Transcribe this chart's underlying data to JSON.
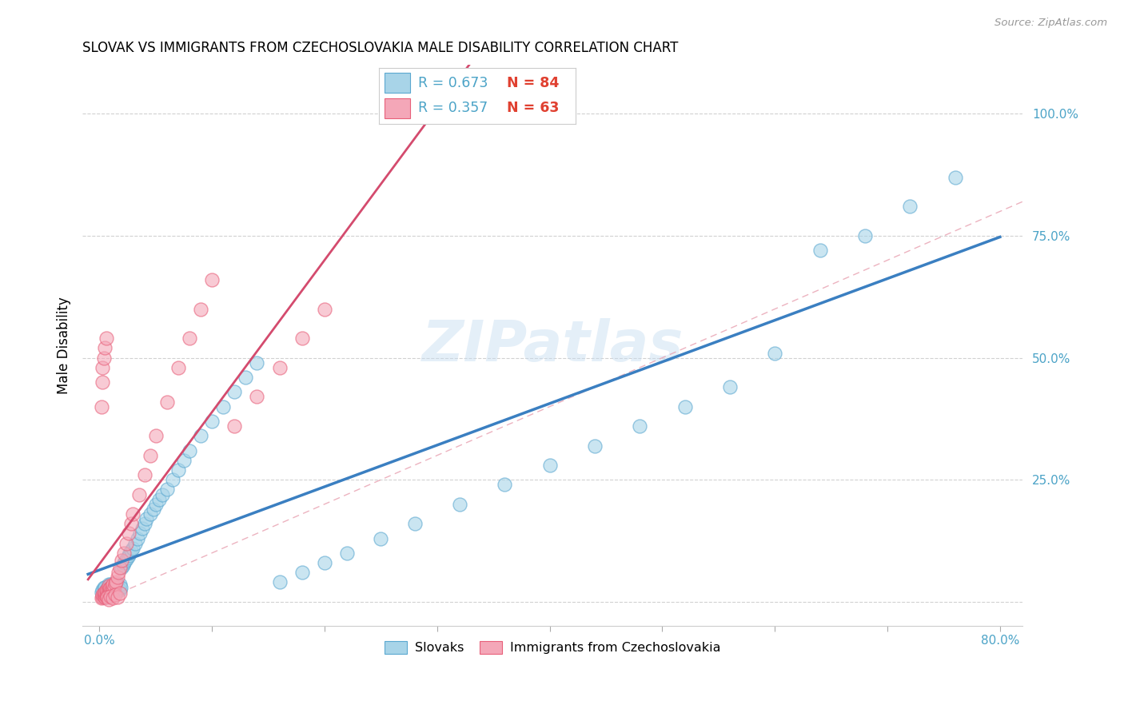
{
  "title": "SLOVAK VS IMMIGRANTS FROM CZECHOSLOVAKIA MALE DISABILITY CORRELATION CHART",
  "source": "Source: ZipAtlas.com",
  "ylabel": "Male Disability",
  "ytick_values": [
    0.0,
    0.25,
    0.5,
    0.75,
    1.0
  ],
  "ytick_labels": [
    "",
    "25.0%",
    "50.0%",
    "75.0%",
    "100.0%"
  ],
  "color_slovak": "#A8D4E8",
  "color_slovak_edge": "#5BA8D0",
  "color_immigrant": "#F4A7B8",
  "color_immigrant_edge": "#E8607A",
  "color_line_slovak": "#3A7FC1",
  "color_line_immigrant": "#D44B6E",
  "color_dashed": "#E8A0B0",
  "color_yaxis": "#4BA3C7",
  "watermark": "ZIPatlas",
  "legend_entries": [
    {
      "r": "R = 0.673",
      "n": "N = 84",
      "color_box": "#A8D4E8",
      "color_edge": "#5BA8D0"
    },
    {
      "r": "R = 0.357",
      "n": "N = 63",
      "color_box": "#F4A7B8",
      "color_edge": "#E8607A"
    }
  ],
  "slovaks_x": [
    0.002,
    0.003,
    0.004,
    0.004,
    0.005,
    0.005,
    0.005,
    0.006,
    0.006,
    0.007,
    0.007,
    0.008,
    0.008,
    0.008,
    0.009,
    0.009,
    0.01,
    0.01,
    0.01,
    0.011,
    0.011,
    0.012,
    0.012,
    0.013,
    0.013,
    0.014,
    0.014,
    0.015,
    0.015,
    0.016,
    0.016,
    0.017,
    0.018,
    0.018,
    0.019,
    0.02,
    0.021,
    0.022,
    0.023,
    0.025,
    0.026,
    0.027,
    0.028,
    0.03,
    0.032,
    0.034,
    0.036,
    0.038,
    0.04,
    0.042,
    0.045,
    0.048,
    0.05,
    0.053,
    0.056,
    0.06,
    0.065,
    0.07,
    0.075,
    0.08,
    0.09,
    0.1,
    0.11,
    0.12,
    0.13,
    0.14,
    0.16,
    0.18,
    0.2,
    0.22,
    0.25,
    0.28,
    0.32,
    0.36,
    0.4,
    0.44,
    0.48,
    0.52,
    0.56,
    0.6,
    0.64,
    0.68,
    0.72,
    0.76
  ],
  "slovaks_y": [
    0.02,
    0.025,
    0.015,
    0.03,
    0.01,
    0.02,
    0.03,
    0.015,
    0.025,
    0.012,
    0.022,
    0.018,
    0.028,
    0.035,
    0.02,
    0.03,
    0.015,
    0.025,
    0.035,
    0.022,
    0.032,
    0.02,
    0.03,
    0.025,
    0.035,
    0.022,
    0.032,
    0.028,
    0.038,
    0.025,
    0.035,
    0.03,
    0.025,
    0.035,
    0.03,
    0.07,
    0.075,
    0.08,
    0.085,
    0.09,
    0.095,
    0.1,
    0.105,
    0.11,
    0.12,
    0.13,
    0.14,
    0.15,
    0.16,
    0.17,
    0.18,
    0.19,
    0.2,
    0.21,
    0.22,
    0.23,
    0.25,
    0.27,
    0.29,
    0.31,
    0.34,
    0.37,
    0.4,
    0.43,
    0.46,
    0.49,
    0.04,
    0.06,
    0.08,
    0.1,
    0.13,
    0.16,
    0.2,
    0.24,
    0.28,
    0.32,
    0.36,
    0.4,
    0.44,
    0.51,
    0.72,
    0.75,
    0.81,
    0.87
  ],
  "immigrants_x": [
    0.002,
    0.003,
    0.003,
    0.004,
    0.004,
    0.005,
    0.005,
    0.005,
    0.006,
    0.006,
    0.006,
    0.007,
    0.007,
    0.008,
    0.008,
    0.008,
    0.009,
    0.009,
    0.01,
    0.01,
    0.011,
    0.011,
    0.012,
    0.012,
    0.013,
    0.014,
    0.015,
    0.016,
    0.017,
    0.018,
    0.02,
    0.022,
    0.024,
    0.026,
    0.028,
    0.03,
    0.035,
    0.04,
    0.045,
    0.05,
    0.06,
    0.07,
    0.08,
    0.09,
    0.1,
    0.12,
    0.14,
    0.16,
    0.18,
    0.2,
    0.002,
    0.003,
    0.003,
    0.004,
    0.005,
    0.006,
    0.007,
    0.008,
    0.01,
    0.012,
    0.014,
    0.016,
    0.018
  ],
  "immigrants_y": [
    0.008,
    0.01,
    0.015,
    0.012,
    0.018,
    0.01,
    0.015,
    0.02,
    0.012,
    0.018,
    0.025,
    0.015,
    0.022,
    0.018,
    0.025,
    0.032,
    0.02,
    0.028,
    0.022,
    0.03,
    0.025,
    0.032,
    0.028,
    0.035,
    0.03,
    0.038,
    0.04,
    0.05,
    0.06,
    0.07,
    0.085,
    0.1,
    0.12,
    0.14,
    0.16,
    0.18,
    0.22,
    0.26,
    0.3,
    0.34,
    0.41,
    0.48,
    0.54,
    0.6,
    0.66,
    0.36,
    0.42,
    0.48,
    0.54,
    0.6,
    0.4,
    0.45,
    0.48,
    0.5,
    0.52,
    0.54,
    0.01,
    0.005,
    0.012,
    0.008,
    0.015,
    0.01,
    0.018
  ]
}
